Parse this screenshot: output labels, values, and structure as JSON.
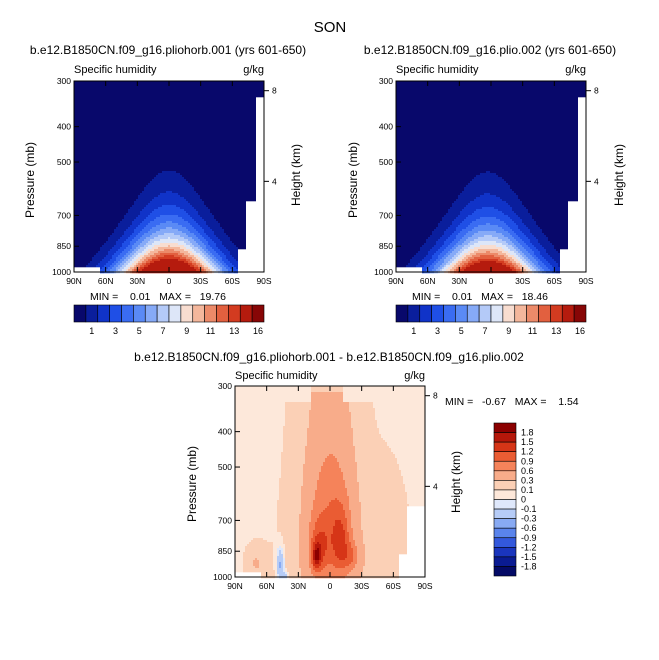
{
  "figure": {
    "title": "SON"
  },
  "chart_data": [
    {
      "type": "heatmap",
      "title": "b.e12.B1850CN.f09_g16.pliohorb.001 (yrs 601-650)",
      "subtitle_left": "Specific humidity",
      "subtitle_right": "g/kg",
      "ylabel": "Pressure (mb)",
      "ylabel_right": "Height (km)",
      "x_ticks": [
        "90N",
        "60N",
        "30N",
        "0",
        "30S",
        "60S",
        "90S"
      ],
      "x_range": [
        90,
        -90
      ],
      "y_ticks": [
        "300",
        "400",
        "500",
        "700",
        "850",
        "1000"
      ],
      "y_tick_values": [
        300,
        400,
        500,
        700,
        850,
        1000
      ],
      "y_range": [
        1000,
        300
      ],
      "height_ticks": [
        "8",
        "4"
      ],
      "height_tick_values": [
        8,
        4
      ],
      "stats": "MIN =    0.01   MAX =   19.76",
      "min": 0.01,
      "max": 19.76,
      "peak_lat": 0,
      "colorbar_labels": [
        "1",
        "3",
        "5",
        "7",
        "9",
        "11",
        "13",
        "16"
      ],
      "colorbar_levels": [
        0.5,
        1,
        2,
        3,
        4,
        5,
        6,
        7,
        8,
        9,
        10,
        11,
        12,
        13,
        14,
        16
      ]
    },
    {
      "type": "heatmap",
      "title": "b.e12.B1850CN.f09_g16.plio.002 (yrs 601-650)",
      "subtitle_left": "Specific humidity",
      "subtitle_right": "g/kg",
      "ylabel": "Pressure (mb)",
      "ylabel_right": "Height (km)",
      "x_ticks": [
        "90N",
        "60N",
        "30N",
        "0",
        "30S",
        "60S",
        "90S"
      ],
      "x_range": [
        90,
        -90
      ],
      "y_ticks": [
        "300",
        "400",
        "500",
        "700",
        "850",
        "1000"
      ],
      "y_tick_values": [
        300,
        400,
        500,
        700,
        850,
        1000
      ],
      "y_range": [
        1000,
        300
      ],
      "height_ticks": [
        "8",
        "4"
      ],
      "height_tick_values": [
        8,
        4
      ],
      "stats": "MIN =    0.01   MAX =   18.46",
      "min": 0.01,
      "max": 18.46,
      "peak_lat": 0,
      "colorbar_labels": [
        "1",
        "3",
        "5",
        "7",
        "9",
        "11",
        "13",
        "16"
      ],
      "colorbar_levels": [
        0.5,
        1,
        2,
        3,
        4,
        5,
        6,
        7,
        8,
        9,
        10,
        11,
        12,
        13,
        14,
        16
      ]
    },
    {
      "type": "heatmap",
      "title": "b.e12.B1850CN.f09_g16.pliohorb.001 - b.e12.B1850CN.f09_g16.plio.002",
      "subtitle_left": "Specific humidity",
      "subtitle_right": "g/kg",
      "ylabel": "Pressure (mb)",
      "ylabel_right": "Height (km)",
      "x_ticks": [
        "90N",
        "60N",
        "30N",
        "0",
        "30S",
        "60S",
        "90S"
      ],
      "x_range": [
        90,
        -90
      ],
      "y_ticks": [
        "300",
        "400",
        "500",
        "700",
        "850",
        "1000"
      ],
      "y_tick_values": [
        300,
        400,
        500,
        700,
        850,
        1000
      ],
      "y_range": [
        1000,
        300
      ],
      "height_ticks": [
        "8",
        "4"
      ],
      "height_tick_values": [
        8,
        4
      ],
      "stats": "MIN =   -0.67   MAX =    1.54",
      "min": -0.67,
      "max": 1.54,
      "colorbar_labels": [
        "1.8",
        "1.5",
        "1.2",
        "0.9",
        "0.6",
        "0.3",
        "0.1",
        "0",
        "-0.1",
        "-0.3",
        "-0.6",
        "-0.9",
        "-1.2",
        "-1.5",
        "-1.8"
      ],
      "colorbar_levels": [
        1.8,
        1.5,
        1.2,
        0.9,
        0.6,
        0.3,
        0.1,
        0,
        -0.1,
        -0.3,
        -0.6,
        -0.9,
        -1.2,
        -1.5,
        -1.8
      ]
    }
  ],
  "colors": {
    "humidity_scale": [
      "#08086b",
      "#0a1e9c",
      "#1033c8",
      "#1f4fe6",
      "#3a6cf2",
      "#5a8af5",
      "#86aaf7",
      "#b4caf8",
      "#dde6f8",
      "#f8ddd0",
      "#f4b79c",
      "#ec8a69",
      "#e2603f",
      "#d33b20",
      "#b51b0e",
      "#870606"
    ],
    "diff_scale_top_to_bottom": [
      "#8b0000",
      "#b5170a",
      "#d63517",
      "#ea5c33",
      "#f5835a",
      "#f8ac8a",
      "#fbd0b6",
      "#fde8da",
      "#dfe8fb",
      "#b6ccf7",
      "#88aaf3",
      "#5a84ec",
      "#3358dc",
      "#1a35bd",
      "#0a1b92",
      "#040a66"
    ],
    "missing": "#ffffff"
  }
}
